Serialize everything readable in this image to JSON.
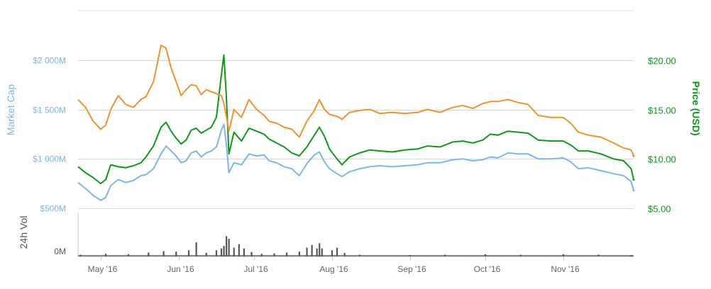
{
  "chart_data": {
    "type": "line",
    "x_axis": {
      "ticks": [
        "May '16",
        "Jun '16",
        "Jul '16",
        "Aug '16",
        "Sep '16",
        "Oct '16",
        "Nov '16"
      ],
      "range": [
        "2016-04-22",
        "2016-11-29"
      ]
    },
    "left_axis": {
      "title": "Market Cap",
      "ticks": [
        "$2 000M",
        "$1 500M",
        "$1 000M",
        "$500M"
      ],
      "tick_values": [
        2000,
        1500,
        1000,
        500
      ],
      "range": [
        500,
        2500
      ],
      "unit": "$M",
      "color": "#7cb5ec"
    },
    "right_axis": {
      "title": "Price (USD)",
      "ticks": [
        "$20.00",
        "$15.00",
        "$10.00",
        "$5.00"
      ],
      "tick_values": [
        20,
        15,
        10,
        5
      ],
      "range": [
        5,
        25
      ],
      "unit": "USD",
      "color": "#109618"
    },
    "volume_axis": {
      "title": "24h Vol",
      "ticks": [
        "0M"
      ],
      "tick_values": [
        0
      ],
      "range": [
        0,
        500
      ],
      "color": "#555555"
    },
    "grid": true,
    "legend": "none",
    "series": [
      {
        "axis": "left",
        "color": "#7cb5ec",
        "points": [
          [
            "2016-04-22",
            760
          ],
          [
            "2016-04-25",
            700
          ],
          [
            "2016-04-28",
            630
          ],
          [
            "2016-05-01",
            580
          ],
          [
            "2016-05-03",
            610
          ],
          [
            "2016-05-05",
            730
          ],
          [
            "2016-05-08",
            790
          ],
          [
            "2016-05-11",
            760
          ],
          [
            "2016-05-14",
            780
          ],
          [
            "2016-05-17",
            830
          ],
          [
            "2016-05-19",
            840
          ],
          [
            "2016-05-22",
            900
          ],
          [
            "2016-05-25",
            1050
          ],
          [
            "2016-05-27",
            1130
          ],
          [
            "2016-05-29",
            1080
          ],
          [
            "2016-05-31",
            1030
          ],
          [
            "2016-06-02",
            960
          ],
          [
            "2016-06-04",
            980
          ],
          [
            "2016-06-06",
            1060
          ],
          [
            "2016-06-08",
            1080
          ],
          [
            "2016-06-10",
            1020
          ],
          [
            "2016-06-12",
            1060
          ],
          [
            "2016-06-14",
            1080
          ],
          [
            "2016-06-16",
            1120
          ],
          [
            "2016-06-18",
            1290
          ],
          [
            "2016-06-19",
            1350
          ],
          [
            "2016-06-20",
            1150
          ],
          [
            "2016-06-21",
            860
          ],
          [
            "2016-06-23",
            960
          ],
          [
            "2016-06-26",
            940
          ],
          [
            "2016-06-29",
            1050
          ],
          [
            "2016-07-02",
            1030
          ],
          [
            "2016-07-05",
            1040
          ],
          [
            "2016-07-07",
            980
          ],
          [
            "2016-07-10",
            960
          ],
          [
            "2016-07-13",
            920
          ],
          [
            "2016-07-16",
            900
          ],
          [
            "2016-07-19",
            830
          ],
          [
            "2016-07-22",
            950
          ],
          [
            "2016-07-25",
            1040
          ],
          [
            "2016-07-27",
            1070
          ],
          [
            "2016-07-29",
            970
          ],
          [
            "2016-07-31",
            900
          ],
          [
            "2016-08-03",
            850
          ],
          [
            "2016-08-05",
            820
          ],
          [
            "2016-08-08",
            870
          ],
          [
            "2016-08-12",
            900
          ],
          [
            "2016-08-16",
            920
          ],
          [
            "2016-08-20",
            930
          ],
          [
            "2016-08-25",
            920
          ],
          [
            "2016-08-30",
            930
          ],
          [
            "2016-09-04",
            940
          ],
          [
            "2016-09-08",
            960
          ],
          [
            "2016-09-13",
            960
          ],
          [
            "2016-09-18",
            990
          ],
          [
            "2016-09-22",
            1000
          ],
          [
            "2016-09-26",
            980
          ],
          [
            "2016-09-30",
            990
          ],
          [
            "2016-10-03",
            1020
          ],
          [
            "2016-10-06",
            1010
          ],
          [
            "2016-10-10",
            1060
          ],
          [
            "2016-10-14",
            1050
          ],
          [
            "2016-10-18",
            1050
          ],
          [
            "2016-10-22",
            1000
          ],
          [
            "2016-10-27",
            1000
          ],
          [
            "2016-11-01",
            1010
          ],
          [
            "2016-11-04",
            970
          ],
          [
            "2016-11-07",
            900
          ],
          [
            "2016-11-11",
            910
          ],
          [
            "2016-11-16",
            880
          ],
          [
            "2016-11-21",
            850
          ],
          [
            "2016-11-25",
            830
          ],
          [
            "2016-11-28",
            770
          ],
          [
            "2016-11-29",
            680
          ]
        ]
      },
      {
        "axis": "right",
        "color": "#109618",
        "points": [
          [
            "2016-04-22",
            9.2
          ],
          [
            "2016-04-25",
            8.6
          ],
          [
            "2016-04-28",
            8.1
          ],
          [
            "2016-05-01",
            7.5
          ],
          [
            "2016-05-03",
            7.9
          ],
          [
            "2016-05-05",
            9.4
          ],
          [
            "2016-05-08",
            9.2
          ],
          [
            "2016-05-11",
            9.1
          ],
          [
            "2016-05-14",
            9.3
          ],
          [
            "2016-05-17",
            9.6
          ],
          [
            "2016-05-19",
            10.2
          ],
          [
            "2016-05-22",
            11.3
          ],
          [
            "2016-05-25",
            13.2
          ],
          [
            "2016-05-27",
            13.7
          ],
          [
            "2016-05-29",
            12.8
          ],
          [
            "2016-05-31",
            12.1
          ],
          [
            "2016-06-02",
            11.5
          ],
          [
            "2016-06-04",
            11.9
          ],
          [
            "2016-06-06",
            12.9
          ],
          [
            "2016-06-08",
            13.1
          ],
          [
            "2016-06-10",
            12.6
          ],
          [
            "2016-06-12",
            12.9
          ],
          [
            "2016-06-14",
            13.2
          ],
          [
            "2016-06-16",
            14.2
          ],
          [
            "2016-06-18",
            18.5
          ],
          [
            "2016-06-19",
            20.5
          ],
          [
            "2016-06-20",
            16.3
          ],
          [
            "2016-06-21",
            10.5
          ],
          [
            "2016-06-23",
            12.7
          ],
          [
            "2016-06-26",
            11.8
          ],
          [
            "2016-06-29",
            13.1
          ],
          [
            "2016-07-02",
            12.8
          ],
          [
            "2016-07-05",
            12.5
          ],
          [
            "2016-07-07",
            12.0
          ],
          [
            "2016-07-10",
            11.6
          ],
          [
            "2016-07-13",
            11.2
          ],
          [
            "2016-07-16",
            10.6
          ],
          [
            "2016-07-19",
            10.3
          ],
          [
            "2016-07-22",
            11.2
          ],
          [
            "2016-07-25",
            12.4
          ],
          [
            "2016-07-27",
            13.2
          ],
          [
            "2016-07-29",
            12.3
          ],
          [
            "2016-07-31",
            11.0
          ],
          [
            "2016-08-03",
            10.0
          ],
          [
            "2016-08-05",
            9.4
          ],
          [
            "2016-08-08",
            10.2
          ],
          [
            "2016-08-12",
            10.6
          ],
          [
            "2016-08-16",
            10.9
          ],
          [
            "2016-08-20",
            10.8
          ],
          [
            "2016-08-25",
            10.7
          ],
          [
            "2016-08-30",
            10.9
          ],
          [
            "2016-09-04",
            11.0
          ],
          [
            "2016-09-08",
            11.3
          ],
          [
            "2016-09-13",
            11.2
          ],
          [
            "2016-09-18",
            11.7
          ],
          [
            "2016-09-22",
            11.8
          ],
          [
            "2016-09-26",
            11.6
          ],
          [
            "2016-09-30",
            11.9
          ],
          [
            "2016-10-03",
            12.5
          ],
          [
            "2016-10-06",
            12.4
          ],
          [
            "2016-10-10",
            12.8
          ],
          [
            "2016-10-14",
            12.7
          ],
          [
            "2016-10-18",
            12.6
          ],
          [
            "2016-10-22",
            11.9
          ],
          [
            "2016-10-27",
            11.8
          ],
          [
            "2016-11-01",
            11.8
          ],
          [
            "2016-11-04",
            11.4
          ],
          [
            "2016-11-07",
            10.8
          ],
          [
            "2016-11-11",
            10.8
          ],
          [
            "2016-11-16",
            10.5
          ],
          [
            "2016-11-21",
            10.0
          ],
          [
            "2016-11-25",
            9.8
          ],
          [
            "2016-11-28",
            9.0
          ],
          [
            "2016-11-29",
            7.9
          ]
        ]
      },
      {
        "axis": "left",
        "color": "#f0912f",
        "points": [
          [
            "2016-04-22",
            1600
          ],
          [
            "2016-04-25",
            1520
          ],
          [
            "2016-04-28",
            1380
          ],
          [
            "2016-05-01",
            1300
          ],
          [
            "2016-05-03",
            1340
          ],
          [
            "2016-05-05",
            1500
          ],
          [
            "2016-05-08",
            1640
          ],
          [
            "2016-05-11",
            1550
          ],
          [
            "2016-05-14",
            1520
          ],
          [
            "2016-05-17",
            1600
          ],
          [
            "2016-05-19",
            1630
          ],
          [
            "2016-05-22",
            1780
          ],
          [
            "2016-05-25",
            2150
          ],
          [
            "2016-05-27",
            2120
          ],
          [
            "2016-05-29",
            1920
          ],
          [
            "2016-05-31",
            1780
          ],
          [
            "2016-06-02",
            1640
          ],
          [
            "2016-06-04",
            1700
          ],
          [
            "2016-06-06",
            1750
          ],
          [
            "2016-06-08",
            1740
          ],
          [
            "2016-06-10",
            1650
          ],
          [
            "2016-06-12",
            1700
          ],
          [
            "2016-06-14",
            1680
          ],
          [
            "2016-06-16",
            1660
          ],
          [
            "2016-06-18",
            1640
          ],
          [
            "2016-06-19",
            1560
          ],
          [
            "2016-06-20",
            1430
          ],
          [
            "2016-06-21",
            1280
          ],
          [
            "2016-06-23",
            1500
          ],
          [
            "2016-06-26",
            1420
          ],
          [
            "2016-06-29",
            1600
          ],
          [
            "2016-07-02",
            1500
          ],
          [
            "2016-07-05",
            1440
          ],
          [
            "2016-07-07",
            1380
          ],
          [
            "2016-07-10",
            1360
          ],
          [
            "2016-07-13",
            1320
          ],
          [
            "2016-07-16",
            1300
          ],
          [
            "2016-07-19",
            1220
          ],
          [
            "2016-07-22",
            1380
          ],
          [
            "2016-07-25",
            1490
          ],
          [
            "2016-07-27",
            1600
          ],
          [
            "2016-07-29",
            1500
          ],
          [
            "2016-07-31",
            1450
          ],
          [
            "2016-08-03",
            1430
          ],
          [
            "2016-08-05",
            1400
          ],
          [
            "2016-08-08",
            1470
          ],
          [
            "2016-08-12",
            1490
          ],
          [
            "2016-08-16",
            1500
          ],
          [
            "2016-08-20",
            1460
          ],
          [
            "2016-08-25",
            1470
          ],
          [
            "2016-08-30",
            1460
          ],
          [
            "2016-09-04",
            1470
          ],
          [
            "2016-09-08",
            1500
          ],
          [
            "2016-09-13",
            1470
          ],
          [
            "2016-09-18",
            1520
          ],
          [
            "2016-09-22",
            1540
          ],
          [
            "2016-09-26",
            1510
          ],
          [
            "2016-09-30",
            1560
          ],
          [
            "2016-10-03",
            1580
          ],
          [
            "2016-10-06",
            1580
          ],
          [
            "2016-10-10",
            1600
          ],
          [
            "2016-10-14",
            1570
          ],
          [
            "2016-10-18",
            1550
          ],
          [
            "2016-10-22",
            1440
          ],
          [
            "2016-10-27",
            1420
          ],
          [
            "2016-11-01",
            1420
          ],
          [
            "2016-11-04",
            1360
          ],
          [
            "2016-11-07",
            1270
          ],
          [
            "2016-11-11",
            1240
          ],
          [
            "2016-11-16",
            1220
          ],
          [
            "2016-11-21",
            1160
          ],
          [
            "2016-11-25",
            1110
          ],
          [
            "2016-11-28",
            1090
          ],
          [
            "2016-11-29",
            1030
          ]
        ]
      }
    ],
    "volume": {
      "color": "#555555",
      "points": [
        [
          "2016-04-23",
          20
        ],
        [
          "2016-05-03",
          30
        ],
        [
          "2016-05-12",
          25
        ],
        [
          "2016-05-20",
          45
        ],
        [
          "2016-05-26",
          60
        ],
        [
          "2016-05-31",
          55
        ],
        [
          "2016-06-05",
          70
        ],
        [
          "2016-06-08",
          160
        ],
        [
          "2016-06-12",
          40
        ],
        [
          "2016-06-16",
          70
        ],
        [
          "2016-06-18",
          90
        ],
        [
          "2016-06-19",
          120
        ],
        [
          "2016-06-20",
          230
        ],
        [
          "2016-06-21",
          200
        ],
        [
          "2016-06-23",
          100
        ],
        [
          "2016-06-25",
          140
        ],
        [
          "2016-06-27",
          90
        ],
        [
          "2016-06-30",
          50
        ],
        [
          "2016-07-04",
          30
        ],
        [
          "2016-07-09",
          35
        ],
        [
          "2016-07-14",
          45
        ],
        [
          "2016-07-19",
          55
        ],
        [
          "2016-07-22",
          100
        ],
        [
          "2016-07-24",
          130
        ],
        [
          "2016-07-26",
          90
        ],
        [
          "2016-07-27",
          150
        ],
        [
          "2016-07-28",
          90
        ],
        [
          "2016-08-01",
          70
        ],
        [
          "2016-08-03",
          100
        ],
        [
          "2016-08-06",
          40
        ],
        [
          "2016-08-12",
          20
        ],
        [
          "2016-09-01",
          15
        ],
        [
          "2016-09-15",
          20
        ],
        [
          "2016-10-01",
          25
        ],
        [
          "2016-10-15",
          20
        ],
        [
          "2016-11-01",
          25
        ],
        [
          "2016-11-15",
          20
        ],
        [
          "2016-11-28",
          15
        ]
      ]
    }
  }
}
